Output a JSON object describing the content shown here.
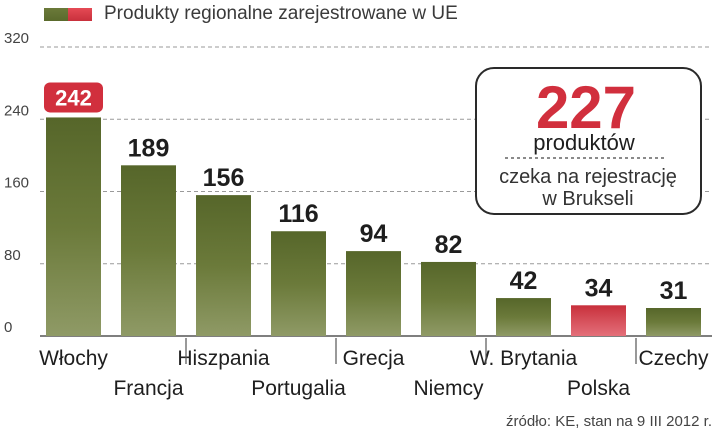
{
  "legend": {
    "label": "Produkty regionalne zarejestrowane w UE"
  },
  "chart_data": {
    "type": "bar",
    "title": "Produkty regionalne zarejestrowane w UE",
    "categories": [
      "Włochy",
      "Francja",
      "Hiszpania",
      "Portugalia",
      "Grecja",
      "Niemcy",
      "W. Brytania",
      "Polska",
      "Czechy"
    ],
    "values": [
      242,
      189,
      156,
      116,
      94,
      82,
      42,
      34,
      31
    ],
    "ylim": [
      0,
      320
    ],
    "yticks": [
      0,
      80,
      160,
      240,
      320
    ],
    "grid": true,
    "highlighted_label": "Włochy",
    "highlighted_bar": "Polska",
    "colors": {
      "bar": "#6b7a3a",
      "bar_highlight": "#d6414c",
      "label_highlight": "#d12f3d"
    }
  },
  "callout": {
    "number": "227",
    "line1": "produktów",
    "line2": "czeka na rejestrację",
    "line3": "w Brukseli"
  },
  "source": "źródło: KE, stan na 9 III 2012 r."
}
